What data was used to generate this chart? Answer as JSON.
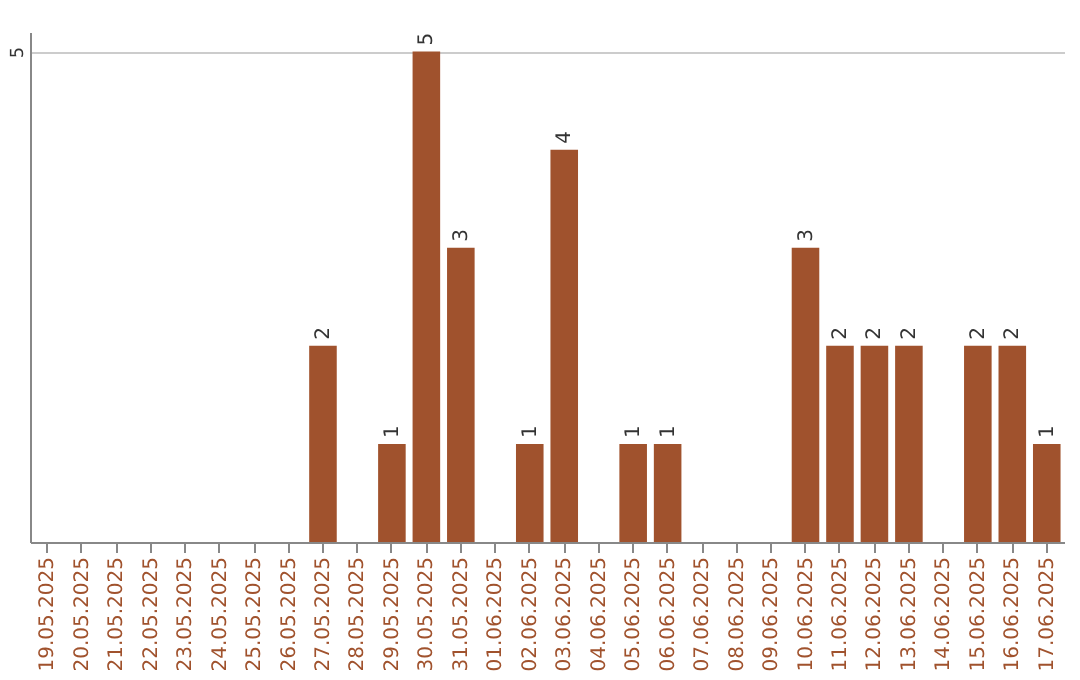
{
  "chart_data": {
    "type": "bar",
    "categories": [
      "19.05.2025",
      "20.05.2025",
      "21.05.2025",
      "22.05.2025",
      "23.05.2025",
      "24.05.2025",
      "25.05.2025",
      "26.05.2025",
      "27.05.2025",
      "28.05.2025",
      "29.05.2025",
      "30.05.2025",
      "31.05.2025",
      "01.06.2025",
      "02.06.2025",
      "03.06.2025",
      "04.06.2025",
      "05.06.2025",
      "06.06.2025",
      "07.06.2025",
      "08.06.2025",
      "09.06.2025",
      "10.06.2025",
      "11.06.2025",
      "12.06.2025",
      "13.06.2025",
      "14.06.2025",
      "15.06.2025",
      "16.06.2025",
      "17.06.2025"
    ],
    "values": [
      0,
      0,
      0,
      0,
      0,
      0,
      0,
      0,
      2,
      0,
      1,
      5,
      3,
      0,
      1,
      4,
      0,
      1,
      1,
      0,
      0,
      0,
      3,
      2,
      2,
      2,
      0,
      2,
      2,
      1
    ],
    "value_labels": [
      null,
      null,
      null,
      null,
      null,
      null,
      null,
      null,
      "2",
      null,
      "1",
      "5",
      "3",
      null,
      "1",
      "4",
      null,
      "1",
      "1",
      null,
      null,
      null,
      "3",
      "2",
      "2",
      "2",
      null,
      "2",
      "2",
      "1"
    ],
    "color": "#a0522d",
    "ylim": [
      0,
      5.2
    ],
    "yticks": [
      5
    ],
    "grid": "y"
  }
}
